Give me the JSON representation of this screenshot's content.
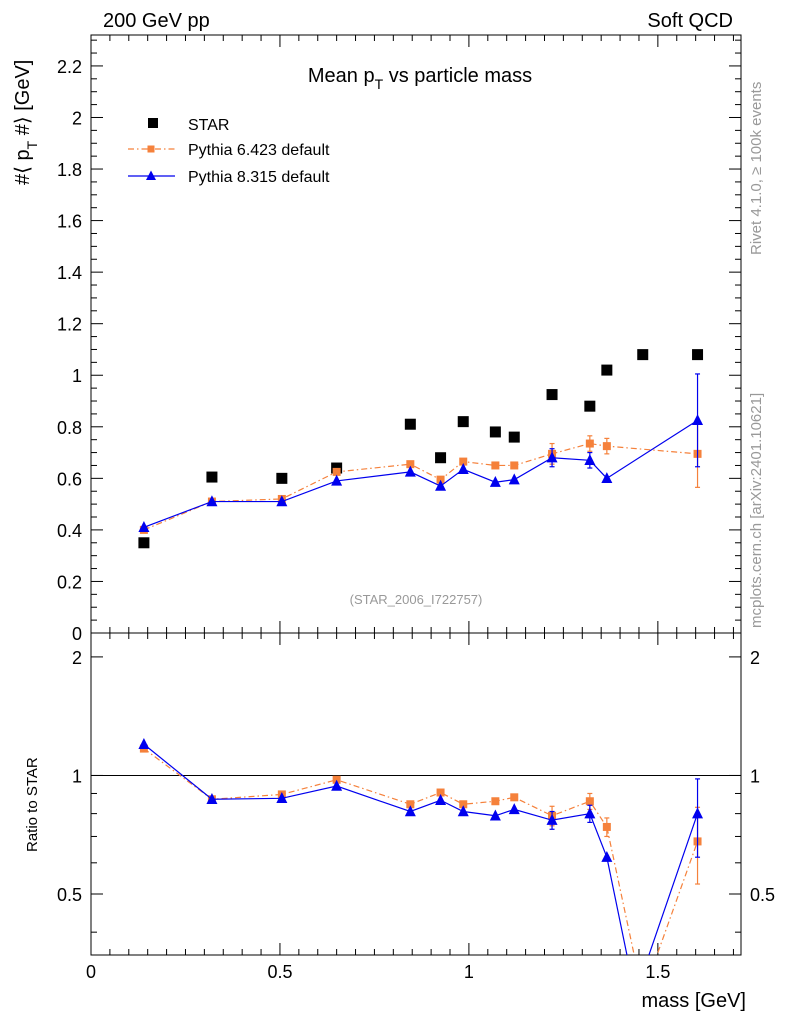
{
  "header": {
    "left": "200 GeV pp",
    "right": "Soft QCD"
  },
  "side_text": {
    "rivet": "Rivet 4.1.0, ≥ 100k events",
    "mcplots": "mcplots.cern.ch [arXiv:2401.10621]"
  },
  "chart_data": {
    "type": "scatter",
    "title": "Mean p_T vs particle mass",
    "title_main": "Mean p",
    "title_sub": "T",
    "title_rest": " vs particle mass",
    "analysis_id": "(STAR_2006_I722757)",
    "xlabel": "mass [GeV]",
    "ylabel": "#⟨ p_T #⟩ [GeV]",
    "ylabel_parts": {
      "a": "#⟨ p",
      "sub": "T",
      "b": " #⟩ [GeV]"
    },
    "ratio_ylabel": "Ratio to STAR",
    "xlim": [
      0,
      1.72
    ],
    "ylim": [
      0,
      2.32
    ],
    "ratio_ylim": [
      0.35,
      2.3
    ],
    "x_ticks": [
      0,
      0.5,
      1,
      1.5
    ],
    "x_tick_labels": [
      "0",
      "0.5",
      "1",
      "1.5"
    ],
    "y_ticks": [
      0,
      0.2,
      0.4,
      0.6,
      0.8,
      1,
      1.2,
      1.4,
      1.6,
      1.8,
      2,
      2.2
    ],
    "y_tick_labels": [
      "0",
      "0.2",
      "0.4",
      "0.6",
      "0.8",
      "1",
      "1.2",
      "1.4",
      "1.6",
      "1.8",
      "2",
      "2.2"
    ],
    "ratio_ticks": [
      0.5,
      1,
      2
    ],
    "ratio_tick_labels": [
      "0.5",
      "1",
      "2"
    ],
    "legend_position": "top-left",
    "series": [
      {
        "name": "STAR",
        "marker": "square",
        "color": "#000000",
        "x": [
          0.14,
          0.32,
          0.505,
          0.65,
          0.845,
          0.925,
          0.985,
          1.07,
          1.12,
          1.22,
          1.32,
          1.365,
          1.46,
          1.605
        ],
        "y": [
          0.35,
          0.605,
          0.6,
          0.64,
          0.81,
          0.68,
          0.82,
          0.78,
          0.76,
          0.925,
          0.88,
          1.02,
          1.08,
          1.08
        ]
      },
      {
        "name": "Pythia 6.423 default",
        "marker": "square",
        "line": "dashdot",
        "color": "#f5813b",
        "x": [
          0.14,
          0.32,
          0.505,
          0.65,
          0.845,
          0.925,
          0.985,
          1.07,
          1.12,
          1.22,
          1.32,
          1.365,
          1.605
        ],
        "y": [
          0.4,
          0.51,
          0.52,
          0.625,
          0.655,
          0.595,
          0.665,
          0.65,
          0.65,
          0.695,
          0.735,
          0.725,
          0.695
        ],
        "yerr": [
          0,
          0,
          0,
          0,
          0,
          0,
          0,
          0,
          0,
          0.04,
          0.03,
          0.03,
          0.13
        ],
        "ratio": [
          1.17,
          0.87,
          0.895,
          0.975,
          0.845,
          0.905,
          0.845,
          0.86,
          0.88,
          0.79,
          0.86,
          0.74,
          0.68
        ],
        "ratio_err": [
          0,
          0,
          0,
          0,
          0,
          0,
          0,
          0,
          0,
          0.045,
          0.04,
          0.04,
          0.15
        ]
      },
      {
        "name": "Pythia 8.315 default",
        "marker": "triangle",
        "line": "solid",
        "color": "#0000ee",
        "x": [
          0.14,
          0.32,
          0.505,
          0.65,
          0.845,
          0.925,
          0.985,
          1.07,
          1.12,
          1.22,
          1.32,
          1.365,
          1.605
        ],
        "y": [
          0.41,
          0.51,
          0.51,
          0.59,
          0.625,
          0.57,
          0.635,
          0.585,
          0.595,
          0.68,
          0.67,
          0.6,
          0.825
        ],
        "yerr": [
          0,
          0,
          0,
          0,
          0,
          0,
          0,
          0,
          0,
          0.035,
          0.03,
          0,
          0.18
        ],
        "ratio": [
          1.2,
          0.87,
          0.875,
          0.94,
          0.81,
          0.865,
          0.81,
          0.79,
          0.82,
          0.77,
          0.8,
          0.62,
          0.8
        ],
        "ratio_err": [
          0,
          0,
          0,
          0,
          0,
          0,
          0,
          0,
          0,
          0.04,
          0.04,
          0,
          0.18
        ]
      }
    ],
    "ratio_offscale_x": 1.44
  }
}
